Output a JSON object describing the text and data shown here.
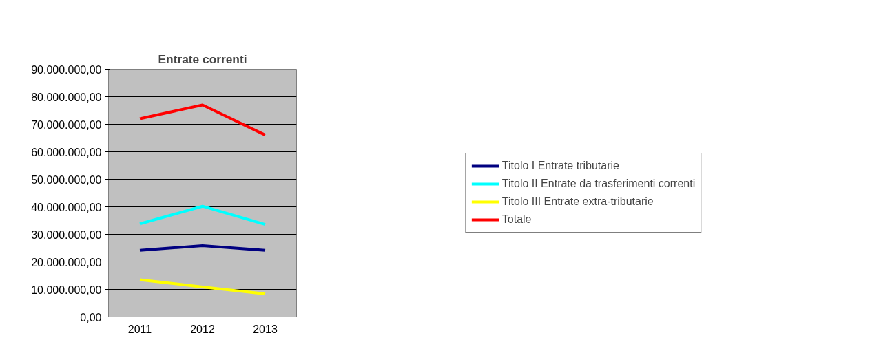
{
  "chart_data": {
    "type": "line",
    "title": "Entrate correnti",
    "categories": [
      "2011",
      "2012",
      "2013"
    ],
    "series": [
      {
        "name": "Titolo I Entrate tributarie",
        "color": "#000080",
        "values": [
          24200000,
          25900000,
          24200000
        ]
      },
      {
        "name": "Titolo II Entrate da trasferimenti correnti",
        "color": "#00ffff",
        "values": [
          33800000,
          40200000,
          33600000
        ]
      },
      {
        "name": "Titolo III Entrate extra-tributarie",
        "color": "#ffff00",
        "values": [
          13500000,
          10900000,
          8400000
        ]
      },
      {
        "name": "Totale",
        "color": "#ff0000",
        "values": [
          72000000,
          77000000,
          66100000
        ]
      }
    ],
    "ylim": [
      0,
      90000000
    ],
    "yticks": [
      {
        "value": 0,
        "label": "0,00"
      },
      {
        "value": 10000000,
        "label": "10.000.000,00"
      },
      {
        "value": 20000000,
        "label": "20.000.000,00"
      },
      {
        "value": 30000000,
        "label": "30.000.000,00"
      },
      {
        "value": 40000000,
        "label": "40.000.000,00"
      },
      {
        "value": 50000000,
        "label": "50.000.000,00"
      },
      {
        "value": 60000000,
        "label": "60.000.000,00"
      },
      {
        "value": 70000000,
        "label": "70.000.000,00"
      },
      {
        "value": 80000000,
        "label": "80.000.000,00"
      },
      {
        "value": 90000000,
        "label": "90.000.000,00"
      }
    ],
    "grid": "y",
    "legend": "right",
    "marker": "none",
    "line_style": "solid"
  }
}
